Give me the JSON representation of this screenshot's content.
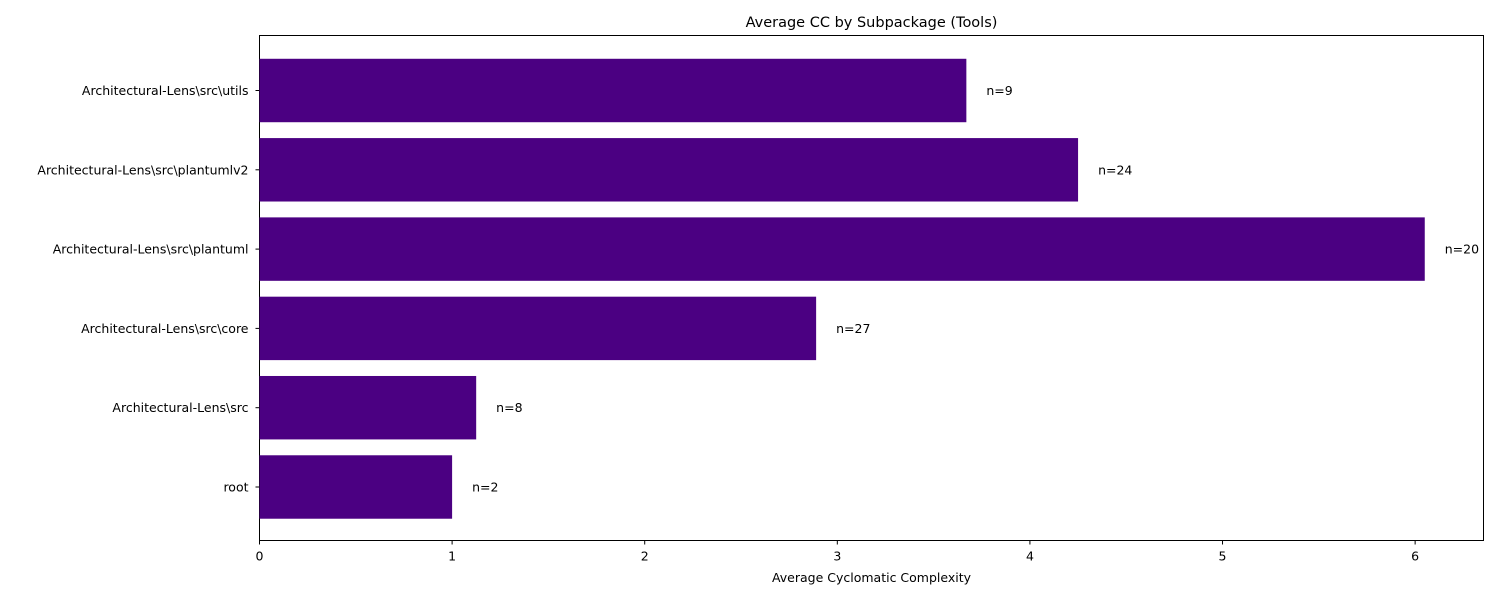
{
  "chart_data": {
    "type": "bar",
    "orientation": "horizontal",
    "title": "Average CC by Subpackage (Tools)",
    "xlabel": "Average Cyclomatic Complexity",
    "ylabel": "",
    "xlim": [
      0,
      6.355
    ],
    "x_ticks": [
      0,
      1,
      2,
      3,
      4,
      5,
      6
    ],
    "grid": false,
    "bar_color": "#4b0082",
    "categories": [
      "root",
      "Architectural-Lens\\src",
      "Architectural-Lens\\src\\core",
      "Architectural-Lens\\src\\plantuml",
      "Architectural-Lens\\src\\plantumlv2",
      "Architectural-Lens\\src\\utils"
    ],
    "values": [
      1.0,
      1.125,
      2.89,
      6.05,
      4.25,
      3.67
    ],
    "annotations": [
      "n=2",
      "n=8",
      "n=27",
      "n=20",
      "n=24",
      "n=9"
    ]
  }
}
